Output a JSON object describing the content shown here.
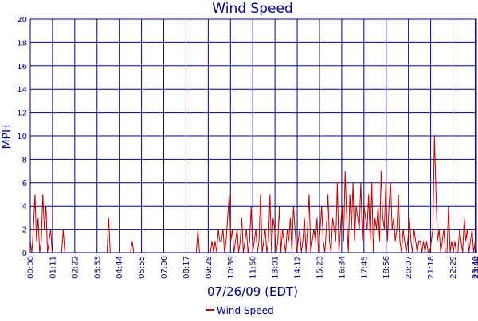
{
  "chart_data": {
    "type": "line",
    "title": "Wind Speed",
    "xlabel": "07/26/09 (EDT)",
    "ylabel": "MPH",
    "ylim": [
      0,
      20
    ],
    "y_ticks": [
      0,
      2,
      4,
      6,
      8,
      10,
      12,
      14,
      16,
      18,
      20
    ],
    "x_range_minutes": [
      0,
      1424
    ],
    "x_ticks": [
      "00:00",
      "01:11",
      "02:22",
      "03:33",
      "04:44",
      "05:55",
      "07:06",
      "08:17",
      "09:28",
      "10:39",
      "11:50",
      "13:01",
      "14:12",
      "15:23",
      "16:34",
      "17:45",
      "18:56",
      "20:07",
      "21:18",
      "22:29",
      "23:40",
      "23:44"
    ],
    "grid": true,
    "legend": "bottom-center",
    "series": [
      {
        "name": "Wind Speed",
        "color": "#c00000",
        "time_minutes": [
          0,
          5,
          10,
          15,
          20,
          25,
          30,
          35,
          40,
          45,
          50,
          55,
          60,
          65,
          70,
          75,
          80,
          85,
          90,
          95,
          100,
          105,
          110,
          115,
          120,
          125,
          130,
          135,
          140,
          145,
          150,
          155,
          160,
          165,
          170,
          175,
          180,
          185,
          190,
          195,
          200,
          205,
          210,
          215,
          220,
          225,
          230,
          235,
          240,
          245,
          250,
          255,
          260,
          265,
          270,
          275,
          280,
          285,
          290,
          295,
          300,
          305,
          310,
          315,
          320,
          325,
          330,
          335,
          340,
          345,
          350,
          355,
          360,
          365,
          370,
          375,
          380,
          385,
          390,
          395,
          400,
          405,
          410,
          415,
          420,
          425,
          430,
          435,
          440,
          445,
          450,
          455,
          460,
          465,
          470,
          475,
          480,
          485,
          490,
          495,
          500,
          505,
          510,
          515,
          520,
          525,
          530,
          535,
          540,
          545,
          550,
          555,
          560,
          565,
          570,
          575,
          580,
          585,
          590,
          595,
          600,
          605,
          610,
          615,
          620,
          625,
          630,
          635,
          640,
          645,
          650,
          655,
          660,
          665,
          670,
          675,
          680,
          685,
          690,
          695,
          700,
          705,
          710,
          715,
          720,
          725,
          730,
          735,
          740,
          745,
          750,
          755,
          760,
          765,
          770,
          775,
          780,
          785,
          790,
          795,
          800,
          805,
          810,
          815,
          820,
          825,
          830,
          835,
          840,
          845,
          850,
          855,
          860,
          865,
          870,
          875,
          880,
          885,
          890,
          895,
          900,
          905,
          910,
          915,
          920,
          925,
          930,
          935,
          940,
          945,
          950,
          955,
          960,
          965,
          970,
          975,
          980,
          985,
          990,
          995,
          1000,
          1005,
          1010,
          1015,
          1020,
          1025,
          1030,
          1035,
          1040,
          1045,
          1050,
          1055,
          1060,
          1065,
          1070,
          1075,
          1080,
          1085,
          1090,
          1095,
          1100,
          1105,
          1110,
          1115,
          1120,
          1125,
          1130,
          1135,
          1140,
          1145,
          1150,
          1155,
          1160,
          1165,
          1170,
          1175,
          1180,
          1185,
          1190,
          1195,
          1200,
          1205,
          1210,
          1215,
          1220,
          1225,
          1230,
          1235,
          1240,
          1245,
          1250,
          1255,
          1260,
          1265,
          1270,
          1275,
          1280,
          1285,
          1290,
          1295,
          1300,
          1305,
          1310,
          1315,
          1320,
          1325,
          1330,
          1335,
          1340,
          1345,
          1350,
          1355,
          1360,
          1365,
          1370,
          1375,
          1380,
          1385,
          1390,
          1395,
          1400,
          1405,
          1410,
          1415,
          1420
        ],
        "values": [
          1,
          0,
          2,
          5,
          1,
          3,
          0,
          1,
          5,
          2,
          4,
          0,
          1,
          2,
          0,
          0,
          0,
          0,
          0,
          0,
          0,
          2,
          0,
          0,
          0,
          0,
          0,
          0,
          0,
          0,
          0,
          0,
          0,
          0,
          0,
          0,
          0,
          0,
          0,
          0,
          0,
          0,
          0,
          0,
          0,
          0,
          0,
          0,
          0,
          0,
          3,
          0,
          0,
          0,
          0,
          0,
          0,
          0,
          0,
          0,
          0,
          0,
          0,
          0,
          0,
          1,
          0,
          0,
          0,
          0,
          0,
          0,
          0,
          0,
          0,
          0,
          0,
          0,
          0,
          0,
          0,
          0,
          0,
          0,
          0,
          0,
          0,
          0,
          0,
          0,
          0,
          0,
          0,
          0,
          0,
          0,
          0,
          0,
          0,
          0,
          0,
          0,
          0,
          0,
          0,
          0,
          0,
          2,
          0,
          0,
          0,
          0,
          0,
          0,
          0,
          0,
          1,
          0,
          1,
          0,
          2,
          1,
          1,
          2,
          0,
          1,
          3,
          5,
          1,
          2,
          0,
          1,
          2,
          0,
          1,
          3,
          0,
          1,
          2,
          0,
          1,
          4,
          0,
          1,
          2,
          0,
          1,
          5,
          0,
          1,
          2,
          0,
          1,
          5,
          0,
          3,
          2,
          0,
          1,
          4,
          0,
          2,
          1,
          0,
          2,
          1,
          3,
          0,
          4,
          2,
          0,
          1,
          2,
          0,
          1,
          3,
          0,
          2,
          5,
          0,
          1,
          2,
          1,
          3,
          0,
          2,
          4,
          1,
          0,
          2,
          5,
          1,
          0,
          3,
          2,
          1,
          6,
          0,
          2,
          4,
          1,
          7,
          3,
          0,
          5,
          2,
          6,
          1,
          4,
          3,
          2,
          6,
          1,
          4,
          3,
          2,
          5,
          1,
          6,
          0,
          3,
          2,
          4,
          1,
          7,
          3,
          2,
          6,
          1,
          4,
          6,
          2,
          3,
          1,
          2,
          5,
          1,
          0,
          2,
          1,
          0,
          1,
          3,
          1,
          0,
          2,
          1,
          0,
          1,
          1,
          0,
          1,
          0,
          1,
          0,
          0,
          1,
          2,
          10,
          5,
          1,
          2,
          0,
          1,
          2,
          0,
          0,
          4,
          0,
          1,
          0,
          1,
          0,
          0,
          2,
          1,
          0,
          3,
          1,
          2,
          0,
          1,
          2,
          0,
          1,
          0,
          0,
          0,
          0,
          0,
          0,
          0,
          0,
          0,
          0,
          0,
          0,
          0,
          0,
          0,
          0,
          0,
          0,
          0,
          0,
          0,
          0,
          0,
          0,
          0,
          0,
          0,
          0,
          0
        ]
      }
    ]
  }
}
